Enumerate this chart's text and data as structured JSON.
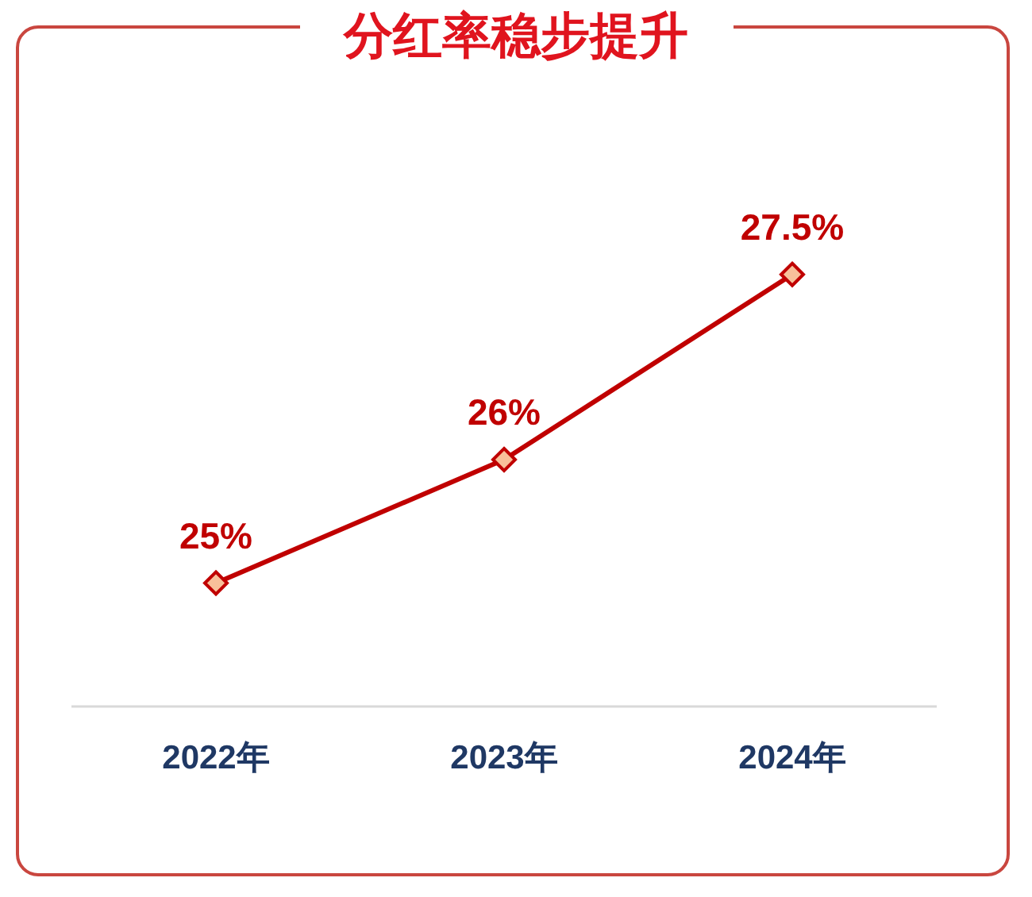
{
  "chart_data": {
    "type": "line",
    "title": "分红率稳步提升",
    "categories": [
      "2022年",
      "2023年",
      "2024年"
    ],
    "series": [
      {
        "color": "#c00000",
        "values": [
          25,
          26,
          27.5
        ],
        "value_labels": [
          "25%",
          "26%",
          "27.5%"
        ]
      }
    ],
    "marker": "diamond",
    "line_style": "solid"
  }
}
